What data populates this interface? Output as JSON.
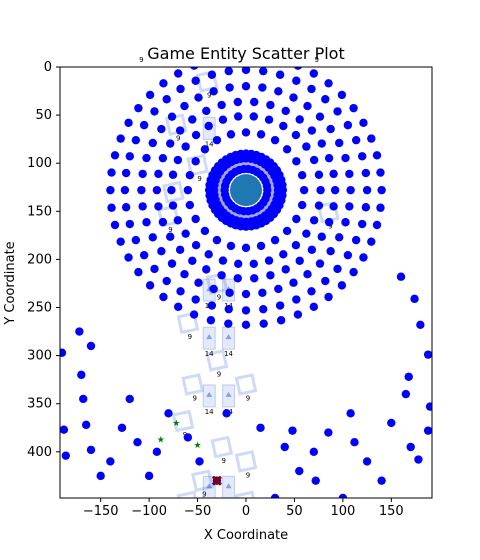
{
  "chart_data": {
    "type": "scatter",
    "title": "Game Entity Scatter Plot",
    "xlabel": "X Coordinate",
    "ylabel": "Y Coordinate",
    "xlim": [
      -192,
      192
    ],
    "ylim": [
      448,
      0
    ],
    "y_axis_inverted": true,
    "grid": false,
    "x_ticks": [
      -150,
      -100,
      -50,
      0,
      50,
      100,
      150
    ],
    "y_ticks": [
      0,
      50,
      100,
      150,
      200,
      250,
      300,
      350,
      400
    ],
    "colors": {
      "entity": "#0000ff",
      "core": "#1f77b4",
      "tree": "#008000",
      "target": "#8b0000",
      "sprite": "#2255dd"
    },
    "rings": [
      {
        "cx": 0,
        "cy": 128,
        "r": 140,
        "n": 48
      },
      {
        "cx": 0,
        "cy": 128,
        "r": 125,
        "n": 44
      },
      {
        "cx": 0,
        "cy": 128,
        "r": 108,
        "n": 40
      },
      {
        "cx": 0,
        "cy": 128,
        "r": 92,
        "n": 34
      },
      {
        "cx": 0,
        "cy": 128,
        "r": 77,
        "n": 30
      },
      {
        "cx": 0,
        "cy": 128,
        "r": 60,
        "n": 24
      },
      {
        "cx": 0,
        "cy": 128,
        "r": 38,
        "n": 44
      },
      {
        "cx": 0,
        "cy": 128,
        "r": 33,
        "n": 40
      },
      {
        "cx": 0,
        "cy": 128,
        "r": 22,
        "n": 30
      }
    ],
    "core": {
      "x": 0,
      "y": 128
    },
    "scattered_entities": [
      [
        -190,
        297
      ],
      [
        -188,
        377
      ],
      [
        -186,
        404
      ],
      [
        -170,
        320
      ],
      [
        -168,
        345
      ],
      [
        -165,
        372
      ],
      [
        -160,
        398
      ],
      [
        -150,
        425
      ],
      [
        -140,
        410
      ],
      [
        -128,
        375
      ],
      [
        -120,
        345
      ],
      [
        -112,
        390
      ],
      [
        -100,
        425
      ],
      [
        -92,
        400
      ],
      [
        -80,
        360
      ],
      [
        -60,
        385
      ],
      [
        -48,
        410
      ],
      [
        -30,
        430
      ],
      [
        -20,
        360
      ],
      [
        15,
        375
      ],
      [
        30,
        448
      ],
      [
        40,
        395
      ],
      [
        48,
        378
      ],
      [
        55,
        420
      ],
      [
        70,
        400
      ],
      [
        72,
        430
      ],
      [
        85,
        380
      ],
      [
        100,
        448
      ],
      [
        112,
        390
      ],
      [
        108,
        360
      ],
      [
        125,
        410
      ],
      [
        140,
        430
      ],
      [
        150,
        370
      ],
      [
        165,
        340
      ],
      [
        168,
        322
      ],
      [
        170,
        395
      ],
      [
        178,
        408
      ],
      [
        188,
        299
      ],
      [
        188,
        378
      ],
      [
        190,
        353
      ],
      [
        180,
        268
      ],
      [
        174,
        241
      ],
      [
        160,
        218
      ],
      [
        -160,
        290
      ],
      [
        -172,
        275
      ]
    ],
    "trees": [
      [
        -88,
        387
      ],
      [
        -72,
        370
      ],
      [
        -50,
        393
      ]
    ],
    "target": {
      "x": -30,
      "y": 430
    },
    "sprites": [
      {
        "x": -72,
        "y": 60,
        "label": "9"
      },
      {
        "x": -40,
        "y": 15,
        "label": "9"
      },
      {
        "x": -50,
        "y": 102,
        "label": "9"
      },
      {
        "x": -75,
        "y": 130,
        "label": "9"
      },
      {
        "x": -80,
        "y": 155,
        "label": "9"
      },
      {
        "x": -30,
        "y": 225,
        "label": "9"
      },
      {
        "x": -60,
        "y": 266,
        "label": "9"
      },
      {
        "x": 85,
        "y": 151,
        "label": "9"
      },
      {
        "x": -30,
        "y": 305,
        "label": "9"
      },
      {
        "x": -55,
        "y": 330,
        "label": "9"
      },
      {
        "x": 0,
        "y": 330,
        "label": "9"
      },
      {
        "x": -65,
        "y": 368,
        "label": "9"
      },
      {
        "x": -25,
        "y": 395,
        "label": "9"
      },
      {
        "x": 0,
        "y": 410,
        "label": "9"
      },
      {
        "x": -45,
        "y": 430,
        "label": "9"
      },
      {
        "x": -60,
        "y": 452,
        "label": "9"
      },
      {
        "x": 0,
        "y": 452,
        "label": "9"
      }
    ],
    "numbered_units": [
      {
        "x": -38,
        "y": -15,
        "label": "14"
      },
      {
        "x": -38,
        "y": 67,
        "label": "14"
      },
      {
        "x": -38,
        "y": 235,
        "label": "14"
      },
      {
        "x": -18,
        "y": 235,
        "label": "14"
      },
      {
        "x": -38,
        "y": 285,
        "label": "14"
      },
      {
        "x": -18,
        "y": 285,
        "label": "14"
      },
      {
        "x": -38,
        "y": 345,
        "label": "14"
      },
      {
        "x": -18,
        "y": 345,
        "label": "14"
      },
      {
        "x": -38,
        "y": 440,
        "label": "14"
      },
      {
        "x": -18,
        "y": 440,
        "label": "14"
      }
    ],
    "small_labels": [
      {
        "x": -108,
        "y": -5,
        "label": "9"
      },
      {
        "x": 73,
        "y": -5,
        "label": "9"
      }
    ]
  }
}
